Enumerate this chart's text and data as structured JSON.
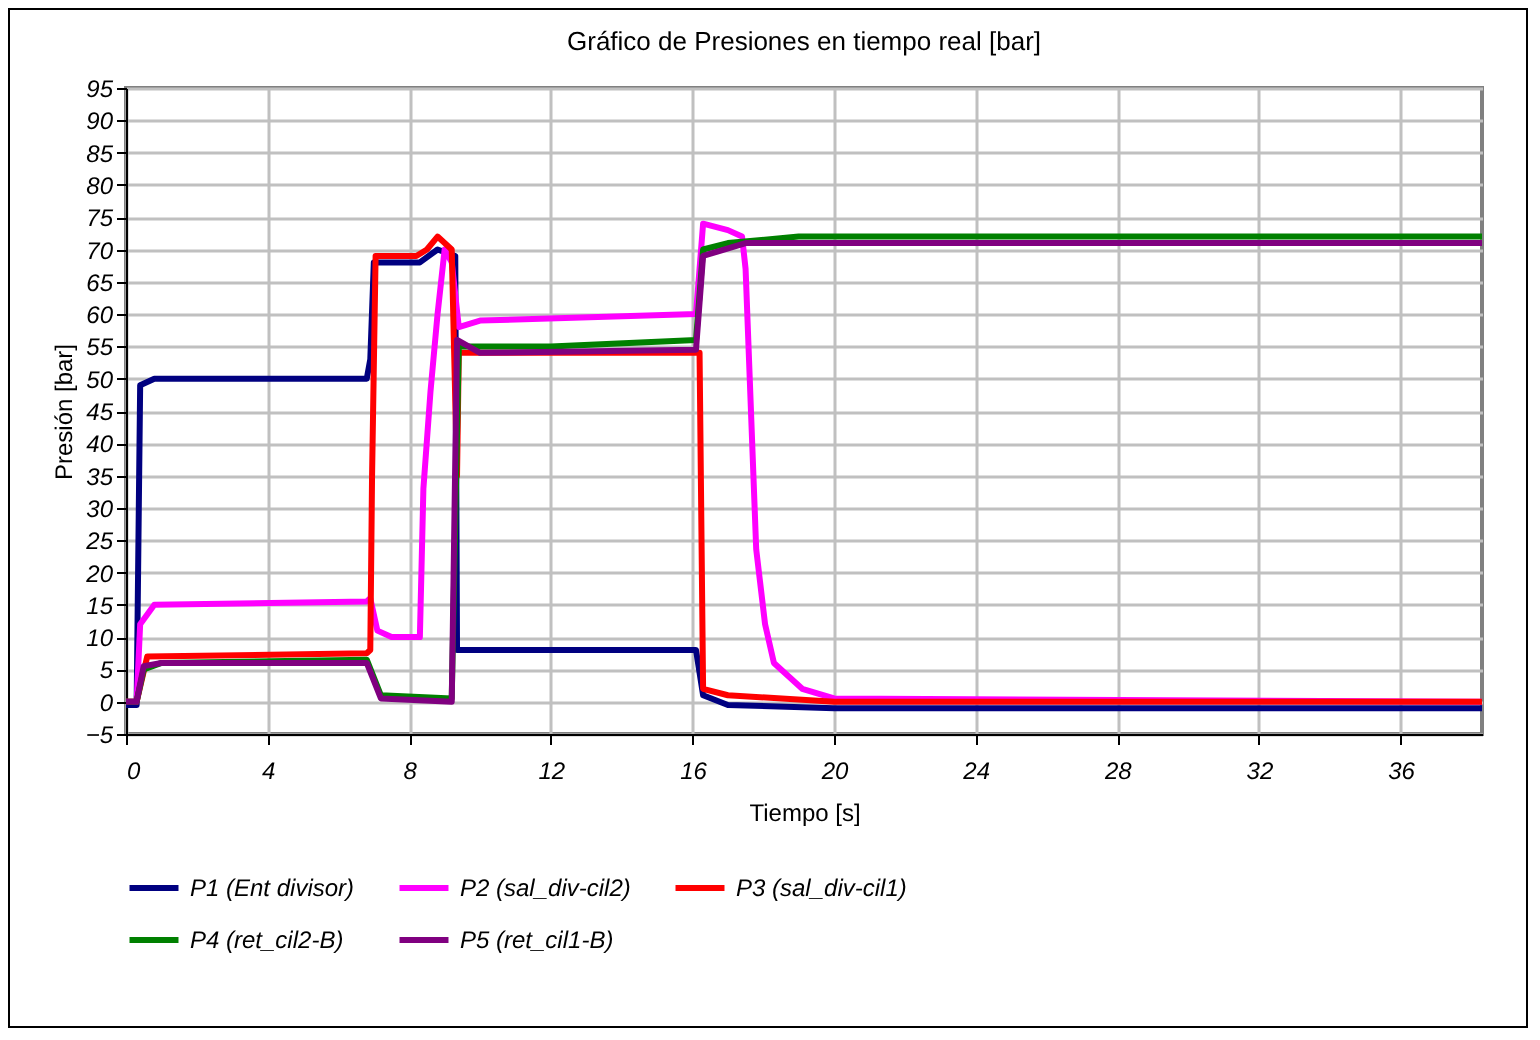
{
  "chart_data": {
    "type": "line",
    "title": "Gráfico de Presiones en tiempo real  [bar]",
    "xlabel": "Tiempo [s]",
    "ylabel": "Presión [bar]",
    "xlim": [
      0,
      38.3
    ],
    "xticks": [
      0,
      4,
      8,
      12,
      16,
      20,
      24,
      28,
      32,
      36
    ],
    "ylim": [
      -5,
      95
    ],
    "yticks": [
      -5,
      0,
      5,
      10,
      15,
      20,
      25,
      30,
      35,
      40,
      45,
      50,
      55,
      60,
      65,
      70,
      75,
      80,
      85,
      90,
      95
    ],
    "grid": true,
    "legend": "bottom",
    "marker": "none",
    "line_style": "solid",
    "series": [
      {
        "name": "P1 (Ent divisor)",
        "color": "#000080",
        "x": [
          0,
          0.3,
          0.4,
          0.8,
          3,
          6.8,
          6.9,
          7.0,
          8.3,
          8.8,
          9.3,
          9.35,
          12,
          16.1,
          16.3,
          17,
          20,
          38.3
        ],
        "values": [
          -0.5,
          -0.5,
          49,
          50,
          50,
          50,
          53,
          68,
          68,
          70,
          69,
          8,
          8,
          8,
          1,
          -0.5,
          -1,
          -1
        ]
      },
      {
        "name": "P2 (sal_div-cil2)",
        "color": "#ff00ff",
        "x": [
          0,
          0.3,
          0.4,
          0.8,
          6.8,
          6.9,
          7.1,
          7.5,
          8.3,
          8.4,
          8.6,
          8.8,
          9.0,
          9.2,
          9.4,
          10,
          16.1,
          16.3,
          17,
          17.4,
          17.5,
          17.8,
          18.05,
          18.3,
          19.1,
          20,
          38.3
        ],
        "values": [
          0,
          0,
          12,
          15,
          15.5,
          16,
          11,
          10,
          10,
          33,
          48,
          60,
          70,
          68,
          58,
          59,
          60,
          74,
          73,
          72,
          67,
          23.6,
          12,
          6,
          2,
          0.5,
          0
        ]
      },
      {
        "name": "P3 (sal_div-cil1)",
        "color": "#ff0000",
        "x": [
          0,
          0.3,
          0.6,
          6.8,
          6.9,
          6.95,
          7.05,
          8.2,
          8.5,
          8.8,
          9.2,
          9.35,
          9.4,
          16.2,
          16.3,
          17,
          20,
          38.3
        ],
        "values": [
          0,
          0,
          7,
          7.5,
          8,
          35,
          69,
          69,
          70,
          72,
          70,
          35,
          54,
          54,
          2,
          1,
          0,
          0
        ]
      },
      {
        "name": "P4 (ret_cil2-B)",
        "color": "#008000",
        "x": [
          0,
          0.3,
          0.5,
          1,
          6.8,
          7.2,
          9.2,
          9.4,
          12,
          16.1,
          16.3,
          17,
          19,
          38.3
        ],
        "values": [
          0,
          0,
          5,
          6,
          6.5,
          1,
          0.5,
          55,
          55,
          56,
          70,
          71,
          72,
          72
        ]
      },
      {
        "name": "P5 (ret_cil1-B)",
        "color": "#800080",
        "x": [
          0,
          0.3,
          0.5,
          1,
          6.8,
          7.2,
          9.2,
          9.35,
          10,
          16.1,
          16.3,
          17.5,
          38.3
        ],
        "values": [
          0,
          0,
          5.5,
          6,
          6,
          0.5,
          0,
          56,
          54,
          54.5,
          69,
          71,
          71
        ]
      }
    ]
  }
}
